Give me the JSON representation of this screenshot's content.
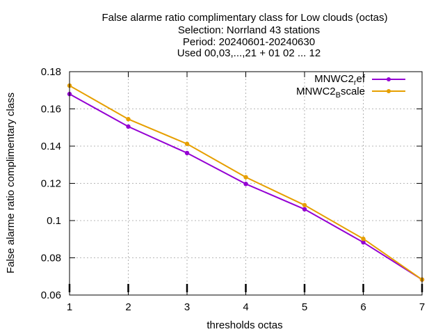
{
  "chart_data": {
    "type": "line",
    "title": [
      "False alarme ratio complimentary class  for Low clouds (octas)",
      "Selection: Norrland     43 stations",
      "Period: 20240601-20240630",
      "Used 00,03,...,21 + 01 02 ... 12"
    ],
    "xlabel": "thresholds octas",
    "ylabel": "False alarme ratio complimentary class",
    "x": [
      1,
      2,
      3,
      4,
      5,
      6,
      7
    ],
    "xlim": [
      1,
      7
    ],
    "ylim": [
      0.06,
      0.18
    ],
    "xticks": [
      "1",
      "2",
      "3",
      "4",
      "5",
      "6",
      "7"
    ],
    "yticks": [
      "0.06",
      "0.08",
      "0.1",
      "0.12",
      "0.14",
      "0.16",
      "0.18"
    ],
    "grid": true,
    "legend_position": "top-right",
    "series": [
      {
        "name": "MNWC2_ref",
        "legend_main": "MNWC2",
        "legend_sub": "r",
        "legend_tail": "ef",
        "color": "#9400d3",
        "values": [
          0.168,
          0.1505,
          0.1363,
          0.1197,
          0.1061,
          0.0883,
          0.0683
        ]
      },
      {
        "name": "MNWC2_Bscale",
        "legend_main": "MNWC2",
        "legend_sub": "B",
        "legend_tail": "scale",
        "color": "#e69f00",
        "values": [
          0.1725,
          0.1545,
          0.1412,
          0.1233,
          0.1083,
          0.0902,
          0.0683
        ]
      }
    ]
  }
}
